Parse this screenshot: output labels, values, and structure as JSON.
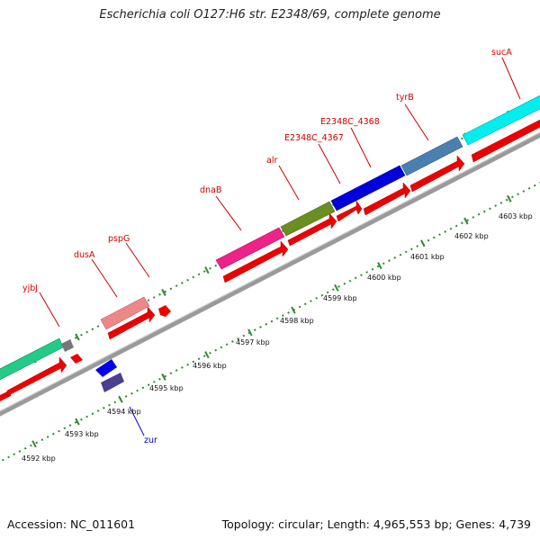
{
  "title": "Escherichia coli O127:H6 str. E2348/69, complete genome",
  "footer": {
    "accession": "Accession: NC_011601",
    "summary": "Topology: circular; Length: 4,965,553 bp; Genes: 4,739"
  },
  "genes": [
    {
      "label": "yjbJ",
      "color": "#cc0000"
    },
    {
      "label": "dusA",
      "color": "#cc0000"
    },
    {
      "label": "pspG",
      "color": "#cc0000"
    },
    {
      "label": "dnaB",
      "color": "#cc0000"
    },
    {
      "label": "alr",
      "color": "#cc0000"
    },
    {
      "label": "E2348C_4367",
      "color": "#cc0000"
    },
    {
      "label": "E2348C_4368",
      "color": "#cc0000"
    },
    {
      "label": "tyrB",
      "color": "#cc0000"
    },
    {
      "label": "sucA",
      "color": "#cc0000"
    },
    {
      "label": "zur",
      "color": "#0000cc"
    }
  ],
  "ticks": [
    "4592 kbp",
    "4593 kbp",
    "4594 kbp",
    "4595 kbp",
    "4596 kbp",
    "4597 kbp",
    "4598 kbp",
    "4599 kbp",
    "4600 kbp",
    "4601 kbp",
    "4602 kbp",
    "4603 kbp"
  ]
}
